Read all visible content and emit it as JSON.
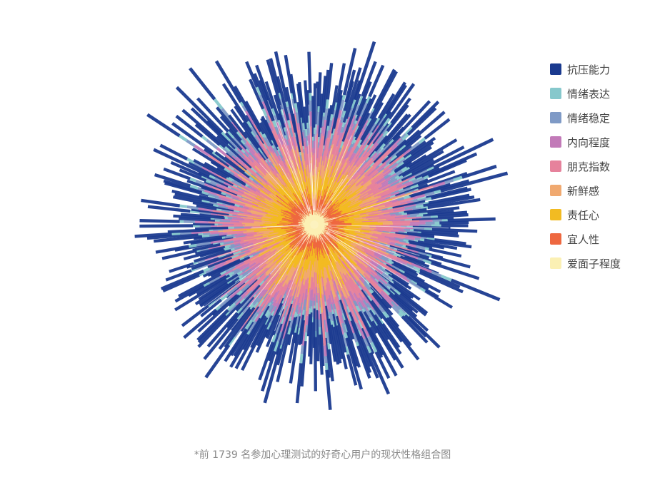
{
  "caption": "*前 1739 名参加心理测试的好奇心用户的现状性格组合图",
  "chart_data": {
    "type": "bar",
    "layout": "radial-stacked",
    "respondents": 1739,
    "series": [
      {
        "name": "抗压能力",
        "color": "#1a3a8f"
      },
      {
        "name": "情绪表达",
        "color": "#86c8cc"
      },
      {
        "name": "情绪稳定",
        "color": "#7f9ac6"
      },
      {
        "name": "内向程度",
        "color": "#c27ab8"
      },
      {
        "name": "朋克指数",
        "color": "#e6829c"
      },
      {
        "name": "新鲜感",
        "color": "#f0a970"
      },
      {
        "name": "责任心",
        "color": "#f2bb22"
      },
      {
        "name": "宜人性",
        "color": "#ee6840"
      },
      {
        "name": "爱面子程度",
        "color": "#fbf0b4"
      }
    ],
    "legend_position": "right",
    "grid": false
  }
}
